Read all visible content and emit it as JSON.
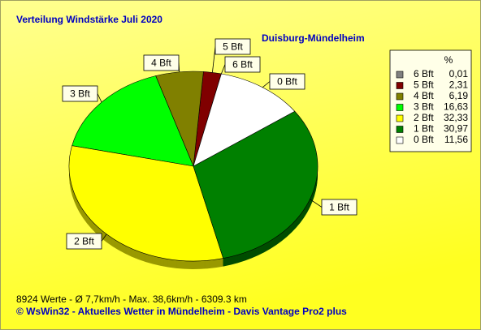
{
  "chart_data": {
    "type": "pie",
    "title": "Verteilung Windstärke  Juli 2020",
    "subtitle": "Duisburg-Mündelheim",
    "legend_header": "%",
    "categories": [
      "6 Bft",
      "5 Bft",
      "4 Bft",
      "3 Bft",
      "2 Bft",
      "1 Bft",
      "0 Bft"
    ],
    "values": [
      0.01,
      2.31,
      6.19,
      16.63,
      32.33,
      30.97,
      11.56
    ],
    "value_labels": [
      "0,01",
      "2,31",
      "6,19",
      "16,63",
      "32,33",
      "30,97",
      "11,56"
    ],
    "colors": [
      "#808080",
      "#800000",
      "#808000",
      "#00ff00",
      "#ffff00",
      "#008000",
      "#ffffff"
    ],
    "legend": "top-right",
    "footer": "8924 Werte   -   Ø 7,7km/h   -  Max. 38,6km/h   -   6309.3 km",
    "credit": "© WsWin32  -  Aktuelles Wetter in Mündelheim  -  Davis Vantage Pro2 plus"
  }
}
